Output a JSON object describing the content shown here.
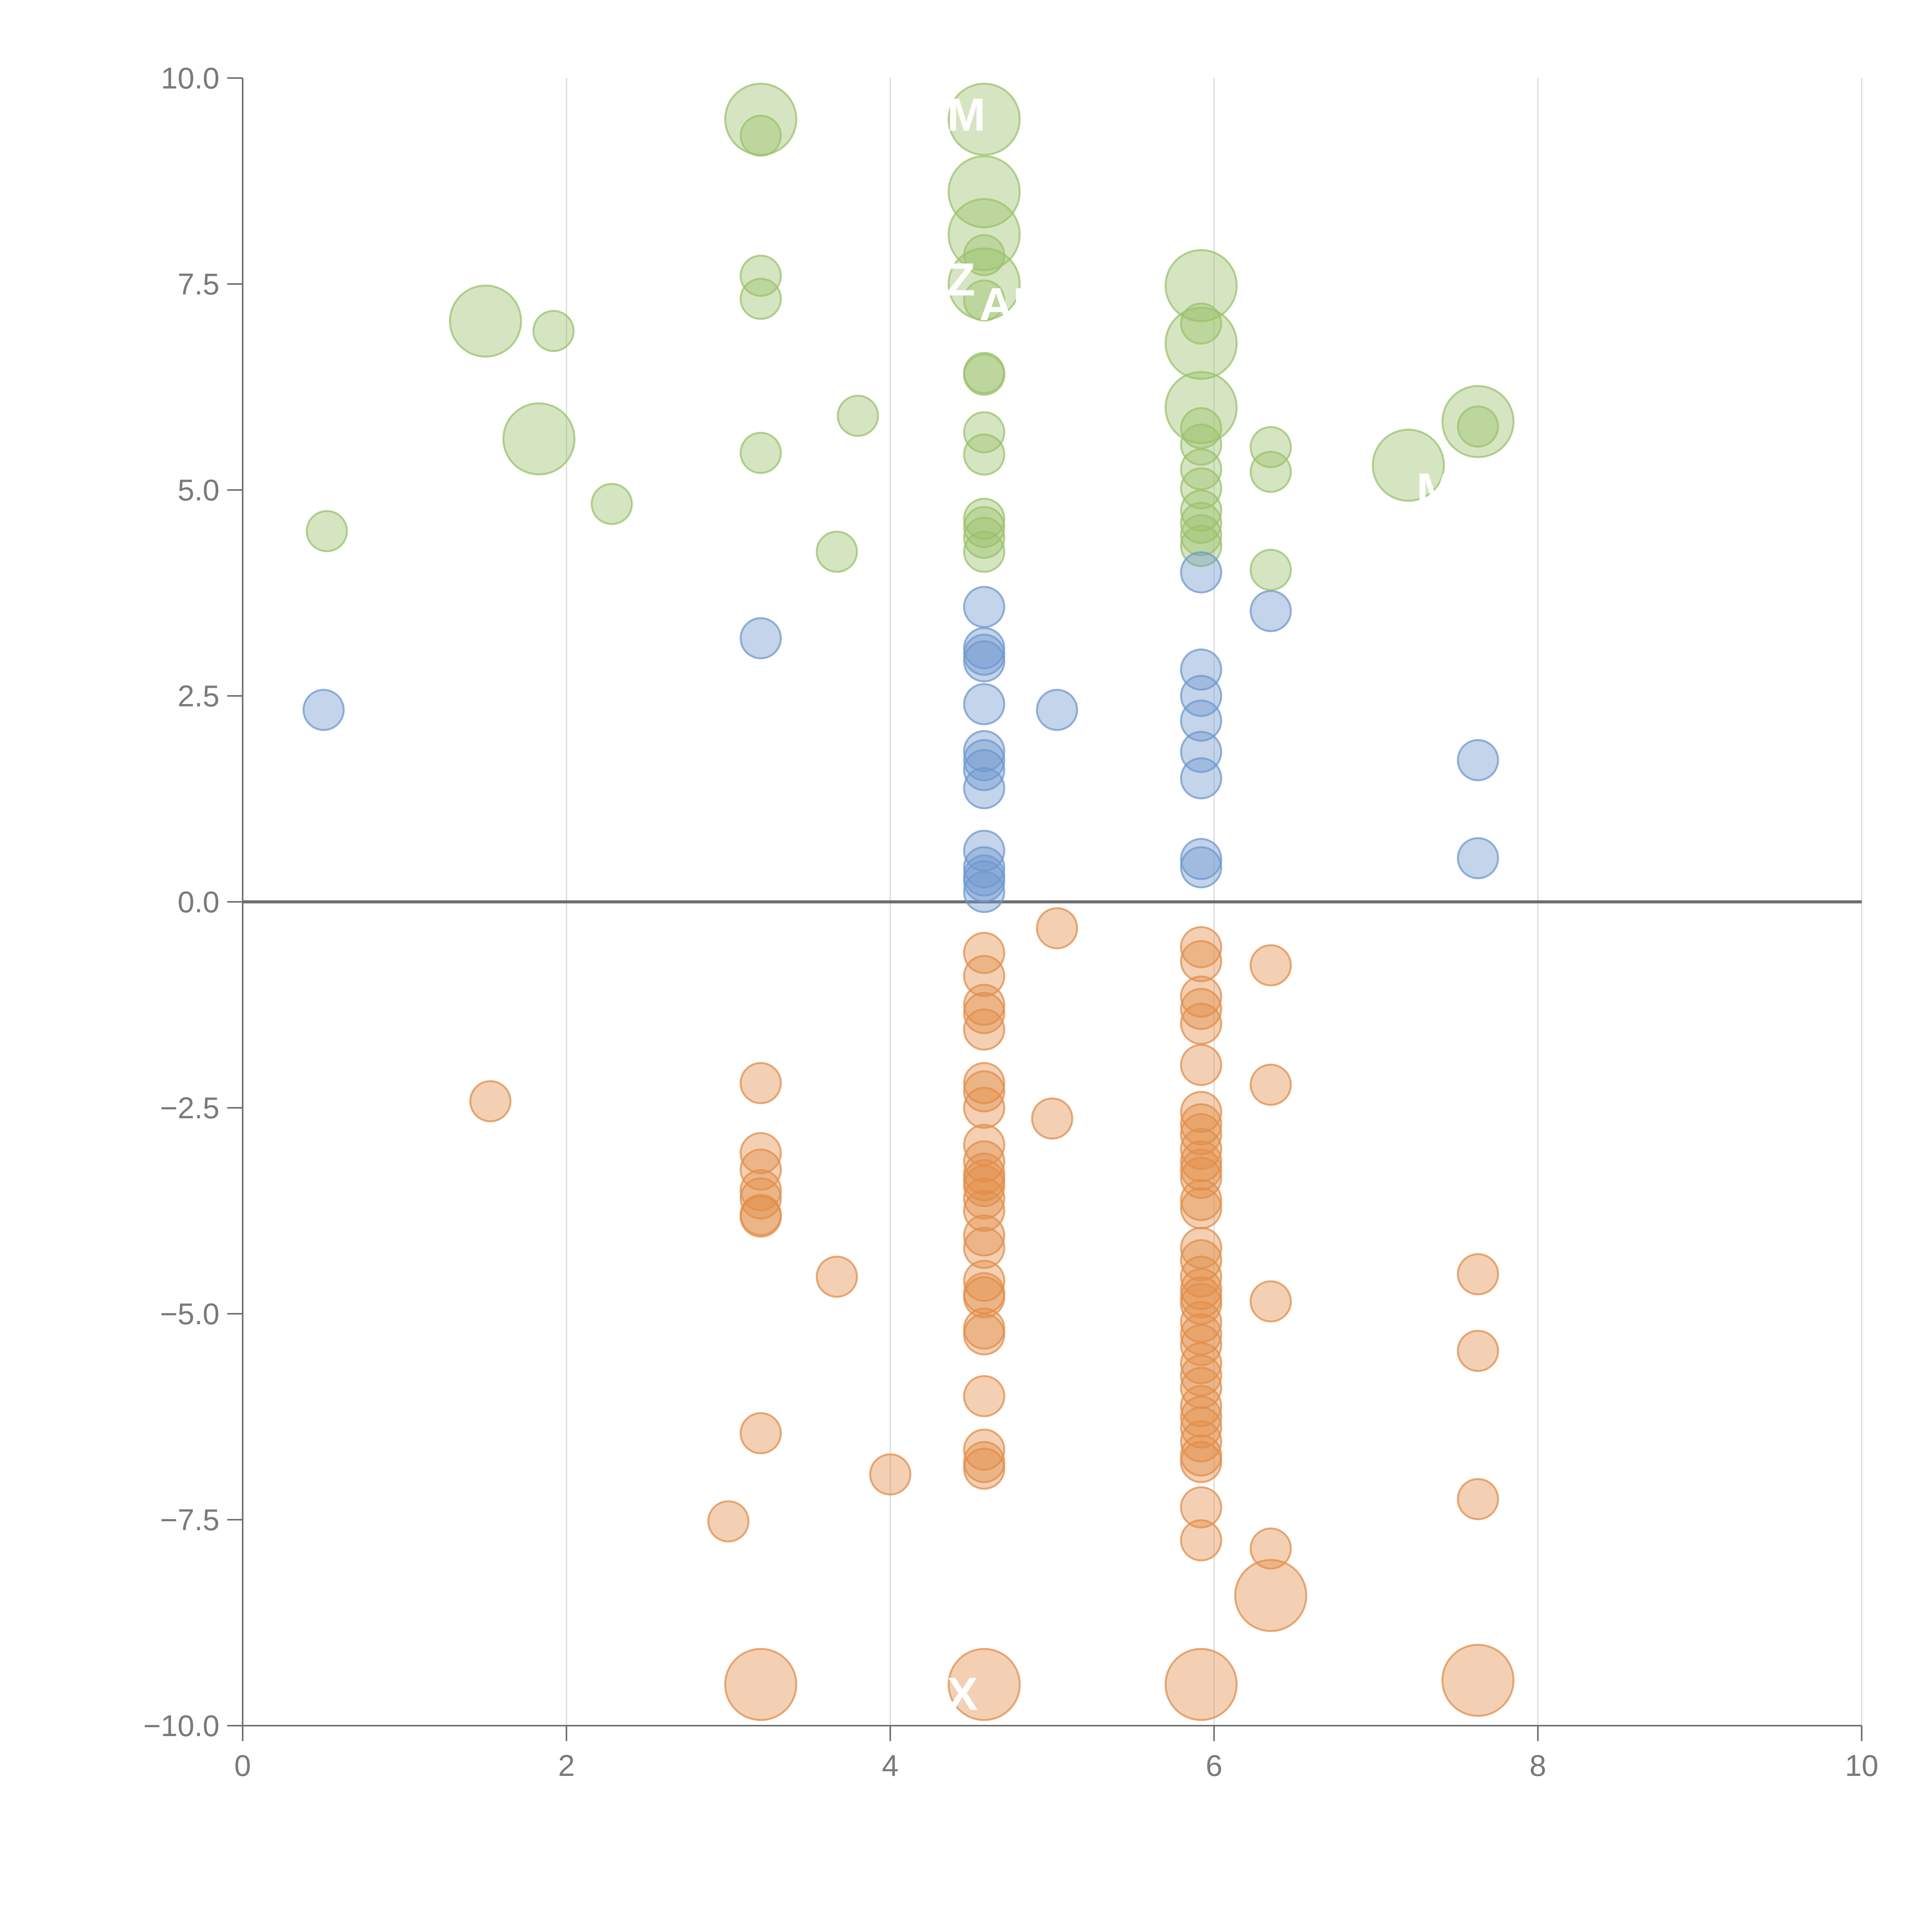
{
  "chart_data": {
    "type": "scatter",
    "title": "",
    "xlabel": "",
    "ylabel": "",
    "xlim": [
      0,
      10
    ],
    "ylim": [
      -10,
      10
    ],
    "x_ticks": [
      0,
      2,
      4,
      6,
      8,
      10
    ],
    "y_ticks": [
      -10,
      -7.5,
      -5,
      -2.5,
      0,
      2.5,
      5,
      7.5,
      10
    ],
    "x_tick_labels": [
      "0",
      "2",
      "4",
      "6",
      "8",
      "10"
    ],
    "y_tick_labels": [
      "−10.0",
      "−7.5",
      "−5.0",
      "−2.5",
      "0.0",
      "2.5",
      "5.0",
      "7.5",
      "10.0"
    ],
    "grid": "vertical",
    "zero_line": true,
    "colors": {
      "green": "#9bc26b",
      "blue": "#6f98cf",
      "orange": "#e38e4a",
      "axis": "#6f6f6f",
      "grid": "#d9d9d9",
      "tick_text": "#7a7a7a"
    },
    "series": [
      {
        "name": "green",
        "color_key": "green",
        "points": [
          {
            "x": 3.2,
            "y": 9.5,
            "size": "large"
          },
          {
            "x": 3.2,
            "y": 9.3
          },
          {
            "x": 4.58,
            "y": 9.5,
            "size": "large"
          },
          {
            "x": 4.58,
            "y": 8.62,
            "size": "large"
          },
          {
            "x": 4.58,
            "y": 8.1,
            "size": "large"
          },
          {
            "x": 4.58,
            "y": 7.85
          },
          {
            "x": 4.58,
            "y": 7.5,
            "size": "large"
          },
          {
            "x": 4.58,
            "y": 7.3
          },
          {
            "x": 4.58,
            "y": 6.42
          },
          {
            "x": 4.58,
            "y": 6.4
          },
          {
            "x": 4.58,
            "y": 5.7
          },
          {
            "x": 4.58,
            "y": 5.43
          },
          {
            "x": 4.58,
            "y": 4.65
          },
          {
            "x": 4.58,
            "y": 4.55
          },
          {
            "x": 4.58,
            "y": 4.42
          },
          {
            "x": 4.58,
            "y": 4.25
          },
          {
            "x": 3.2,
            "y": 7.6
          },
          {
            "x": 3.2,
            "y": 7.32
          },
          {
            "x": 3.2,
            "y": 5.45
          },
          {
            "x": 1.5,
            "y": 7.05,
            "size": "large"
          },
          {
            "x": 1.92,
            "y": 6.93
          },
          {
            "x": 1.83,
            "y": 5.62,
            "size": "large"
          },
          {
            "x": 2.28,
            "y": 4.83
          },
          {
            "x": 0.52,
            "y": 4.5
          },
          {
            "x": 3.8,
            "y": 5.9
          },
          {
            "x": 3.67,
            "y": 4.25
          },
          {
            "x": 5.92,
            "y": 7.48,
            "size": "large"
          },
          {
            "x": 5.92,
            "y": 7.02
          },
          {
            "x": 5.92,
            "y": 6.78,
            "size": "large"
          },
          {
            "x": 5.92,
            "y": 6.0,
            "size": "large"
          },
          {
            "x": 5.92,
            "y": 5.75
          },
          {
            "x": 5.92,
            "y": 5.55
          },
          {
            "x": 5.92,
            "y": 5.25
          },
          {
            "x": 5.92,
            "y": 5.02
          },
          {
            "x": 5.92,
            "y": 4.75
          },
          {
            "x": 5.92,
            "y": 4.6
          },
          {
            "x": 5.92,
            "y": 4.45
          },
          {
            "x": 5.92,
            "y": 4.32
          },
          {
            "x": 6.35,
            "y": 5.52
          },
          {
            "x": 6.35,
            "y": 5.22
          },
          {
            "x": 6.35,
            "y": 4.03
          },
          {
            "x": 7.2,
            "y": 5.3,
            "size": "large"
          },
          {
            "x": 7.63,
            "y": 5.83,
            "size": "large"
          },
          {
            "x": 7.63,
            "y": 5.77
          }
        ]
      },
      {
        "name": "blue",
        "color_key": "blue",
        "points": [
          {
            "x": 0.5,
            "y": 2.33
          },
          {
            "x": 3.2,
            "y": 3.2
          },
          {
            "x": 4.58,
            "y": 3.58
          },
          {
            "x": 4.58,
            "y": 3.08
          },
          {
            "x": 4.58,
            "y": 3.0
          },
          {
            "x": 4.58,
            "y": 2.92
          },
          {
            "x": 4.58,
            "y": 2.4
          },
          {
            "x": 4.58,
            "y": 1.83
          },
          {
            "x": 4.58,
            "y": 1.72
          },
          {
            "x": 4.58,
            "y": 1.6
          },
          {
            "x": 4.58,
            "y": 1.38
          },
          {
            "x": 4.58,
            "y": 0.62
          },
          {
            "x": 4.58,
            "y": 0.42
          },
          {
            "x": 4.58,
            "y": 0.32
          },
          {
            "x": 4.58,
            "y": 0.25
          },
          {
            "x": 4.58,
            "y": 0.12
          },
          {
            "x": 5.03,
            "y": 2.33
          },
          {
            "x": 5.92,
            "y": 4.0
          },
          {
            "x": 5.92,
            "y": 2.82
          },
          {
            "x": 5.92,
            "y": 2.5
          },
          {
            "x": 5.92,
            "y": 2.2
          },
          {
            "x": 5.92,
            "y": 1.82
          },
          {
            "x": 5.92,
            "y": 1.5
          },
          {
            "x": 5.92,
            "y": 0.52
          },
          {
            "x": 5.92,
            "y": 0.42
          },
          {
            "x": 6.35,
            "y": 3.53
          },
          {
            "x": 7.63,
            "y": 1.72
          },
          {
            "x": 7.63,
            "y": 0.53
          }
        ]
      },
      {
        "name": "orange",
        "color_key": "orange",
        "points": [
          {
            "x": 1.53,
            "y": -2.42
          },
          {
            "x": 3.2,
            "y": -2.2
          },
          {
            "x": 3.2,
            "y": -3.05
          },
          {
            "x": 3.2,
            "y": -3.25
          },
          {
            "x": 3.2,
            "y": -3.5
          },
          {
            "x": 3.2,
            "y": -3.6
          },
          {
            "x": 3.2,
            "y": -3.8
          },
          {
            "x": 3.2,
            "y": -3.82
          },
          {
            "x": 3.2,
            "y": -6.45
          },
          {
            "x": 3.2,
            "y": -9.5,
            "size": "large"
          },
          {
            "x": 3.0,
            "y": -7.52
          },
          {
            "x": 3.67,
            "y": -4.55
          },
          {
            "x": 4.0,
            "y": -6.95
          },
          {
            "x": 4.58,
            "y": -0.62
          },
          {
            "x": 4.58,
            "y": -0.9
          },
          {
            "x": 4.58,
            "y": -1.25
          },
          {
            "x": 4.58,
            "y": -1.35
          },
          {
            "x": 4.58,
            "y": -1.55
          },
          {
            "x": 4.58,
            "y": -2.2
          },
          {
            "x": 4.58,
            "y": -2.3
          },
          {
            "x": 4.58,
            "y": -2.5
          },
          {
            "x": 4.58,
            "y": -2.95
          },
          {
            "x": 4.58,
            "y": -3.15
          },
          {
            "x": 4.58,
            "y": -3.3
          },
          {
            "x": 4.58,
            "y": -3.38
          },
          {
            "x": 4.58,
            "y": -3.45
          },
          {
            "x": 4.58,
            "y": -3.6
          },
          {
            "x": 4.58,
            "y": -3.75
          },
          {
            "x": 4.58,
            "y": -4.05
          },
          {
            "x": 4.58,
            "y": -4.2
          },
          {
            "x": 4.58,
            "y": -4.6
          },
          {
            "x": 4.58,
            "y": -4.75
          },
          {
            "x": 4.58,
            "y": -4.8
          },
          {
            "x": 4.58,
            "y": -5.18
          },
          {
            "x": 4.58,
            "y": -5.25
          },
          {
            "x": 4.58,
            "y": -6.0
          },
          {
            "x": 4.58,
            "y": -6.65
          },
          {
            "x": 4.58,
            "y": -6.8
          },
          {
            "x": 4.58,
            "y": -6.88
          },
          {
            "x": 4.58,
            "y": -9.5,
            "size": "large"
          },
          {
            "x": 5.03,
            "y": -0.32
          },
          {
            "x": 5.0,
            "y": -2.63
          },
          {
            "x": 5.92,
            "y": -0.55
          },
          {
            "x": 5.92,
            "y": -0.72
          },
          {
            "x": 5.92,
            "y": -1.15
          },
          {
            "x": 5.92,
            "y": -1.3
          },
          {
            "x": 5.92,
            "y": -1.48
          },
          {
            "x": 5.92,
            "y": -1.98
          },
          {
            "x": 5.92,
            "y": -2.55
          },
          {
            "x": 5.92,
            "y": -2.7
          },
          {
            "x": 5.92,
            "y": -2.82
          },
          {
            "x": 5.92,
            "y": -3.0
          },
          {
            "x": 5.92,
            "y": -3.15
          },
          {
            "x": 5.92,
            "y": -3.25
          },
          {
            "x": 5.92,
            "y": -3.35
          },
          {
            "x": 5.92,
            "y": -3.62
          },
          {
            "x": 5.92,
            "y": -3.72
          },
          {
            "x": 5.92,
            "y": -4.2
          },
          {
            "x": 5.92,
            "y": -4.35
          },
          {
            "x": 5.92,
            "y": -4.55
          },
          {
            "x": 5.92,
            "y": -4.7
          },
          {
            "x": 5.92,
            "y": -4.8
          },
          {
            "x": 5.92,
            "y": -4.88
          },
          {
            "x": 5.92,
            "y": -5.1
          },
          {
            "x": 5.92,
            "y": -5.25
          },
          {
            "x": 5.92,
            "y": -5.38
          },
          {
            "x": 5.92,
            "y": -5.6
          },
          {
            "x": 5.92,
            "y": -5.75
          },
          {
            "x": 5.92,
            "y": -5.9
          },
          {
            "x": 5.92,
            "y": -6.12
          },
          {
            "x": 5.92,
            "y": -6.25
          },
          {
            "x": 5.92,
            "y": -6.38
          },
          {
            "x": 5.92,
            "y": -6.55
          },
          {
            "x": 5.92,
            "y": -6.72
          },
          {
            "x": 5.92,
            "y": -6.8
          },
          {
            "x": 5.92,
            "y": -7.35
          },
          {
            "x": 5.92,
            "y": -7.75
          },
          {
            "x": 5.92,
            "y": -9.5,
            "size": "large"
          },
          {
            "x": 6.35,
            "y": -0.77
          },
          {
            "x": 6.35,
            "y": -2.22
          },
          {
            "x": 6.35,
            "y": -4.85
          },
          {
            "x": 6.35,
            "y": -7.85
          },
          {
            "x": 6.35,
            "y": -8.42,
            "size": "large"
          },
          {
            "x": 7.63,
            "y": -4.52
          },
          {
            "x": 7.63,
            "y": -5.45
          },
          {
            "x": 7.63,
            "y": -7.25
          },
          {
            "x": 7.63,
            "y": -9.45,
            "size": "large"
          }
        ]
      }
    ],
    "point_labels": [
      {
        "text": "M",
        "x": 4.35,
        "y": 9.55
      },
      {
        "text": "Z",
        "x": 4.35,
        "y": 7.55
      },
      {
        "text": "AI",
        "x": 4.55,
        "y": 7.25
      },
      {
        "text": "M",
        "x": 7.25,
        "y": 5.0
      },
      {
        "text": "X",
        "x": 4.35,
        "y": -9.62
      }
    ]
  }
}
